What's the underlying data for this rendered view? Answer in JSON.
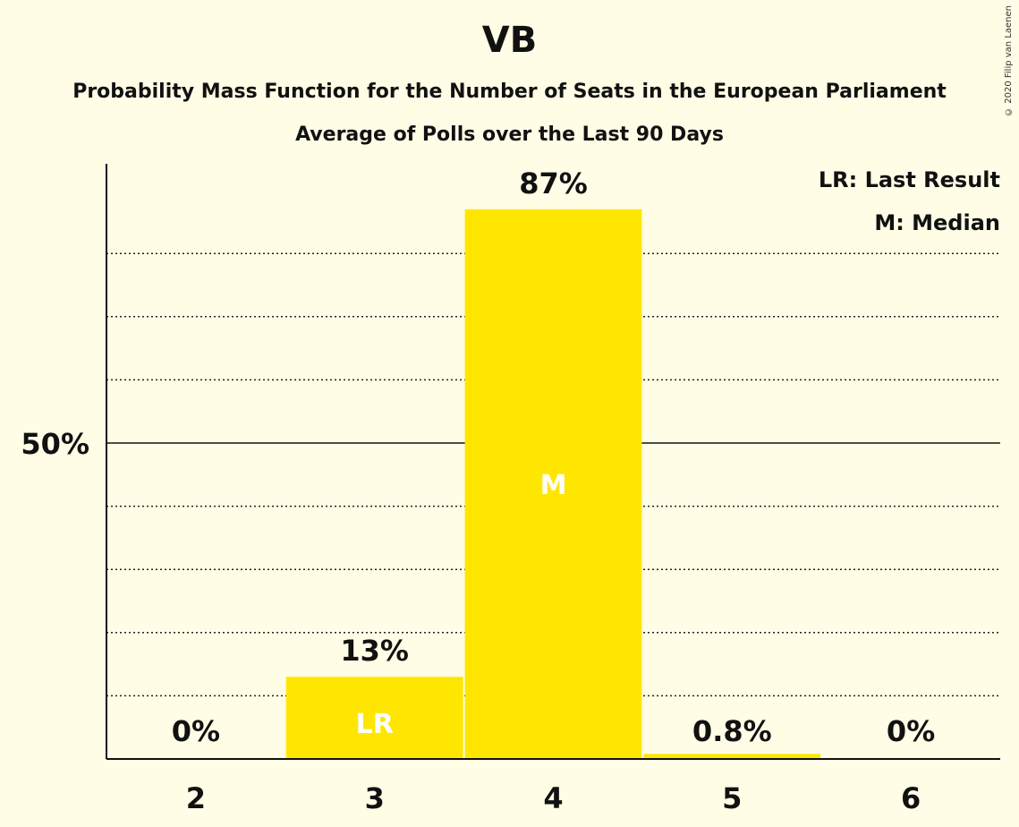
{
  "header": {
    "title": "VB",
    "subtitle": "Probability Mass Function for the Number of Seats in the European Parliament",
    "subtitle2": "Average of Polls over the Last 90 Days",
    "copyright": "© 2020 Filip van Laenen"
  },
  "legend": {
    "lr": "LR: Last Result",
    "m": "M: Median"
  },
  "colors": {
    "bar": "#ffe600",
    "background": "#fffde6"
  },
  "chart_data": {
    "type": "bar",
    "categories": [
      "2",
      "3",
      "4",
      "5",
      "6"
    ],
    "values": [
      0,
      13,
      87,
      0.8,
      0
    ],
    "data_labels": [
      "0%",
      "13%",
      "87%",
      "0.8%",
      "0%"
    ],
    "bar_markers": [
      "",
      "LR",
      "M",
      "",
      ""
    ],
    "ylim": [
      0,
      94
    ],
    "yticks": [
      {
        "value": 50,
        "label": "50%"
      }
    ],
    "minor_gridlines": [
      10,
      20,
      30,
      40,
      60,
      70,
      80
    ],
    "grid": true,
    "legend_position": "top-right"
  }
}
